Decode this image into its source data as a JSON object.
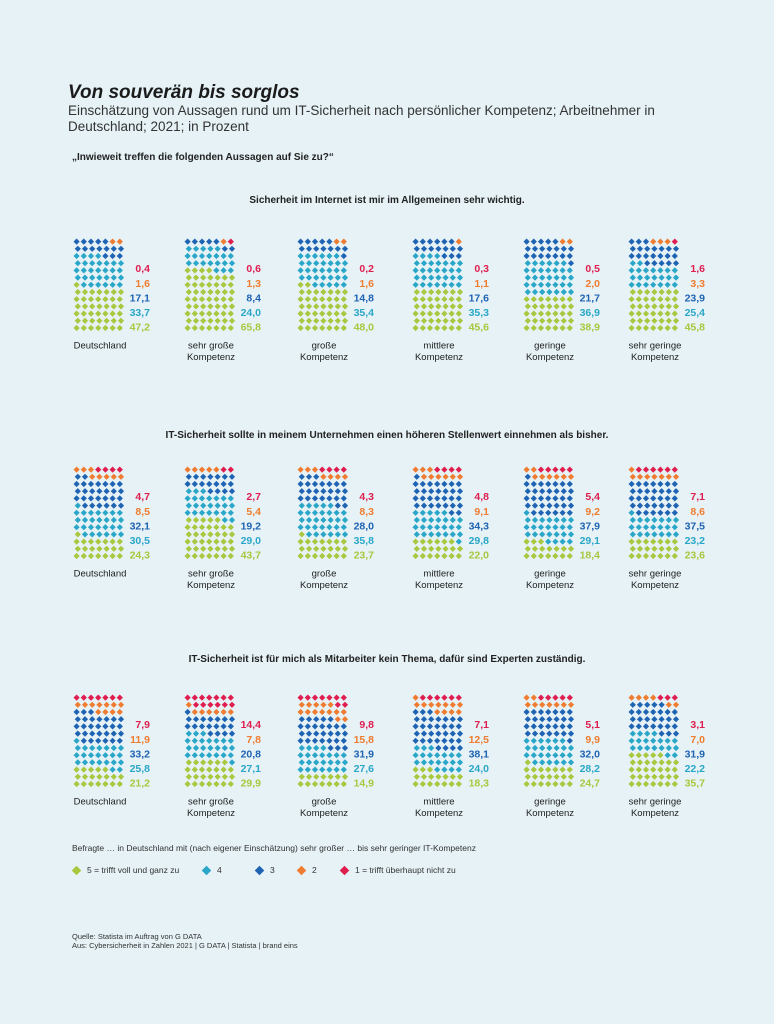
{
  "header": {
    "title": "Von souverän bis sorglos",
    "subtitle": "Einschätzung von Aussagen rund um IT-Sicherheit nach persönlicher Kompetenz; Arbeitnehmer in Deutschland; 2021; in Prozent",
    "question": "„Inwieweit treffen die folgenden Aussagen auf Sie zu?“"
  },
  "colors": {
    "5": "#a9c73f",
    "4": "#2aa7c8",
    "3": "#1f63b3",
    "2": "#ef7c30",
    "1": "#df1e4f"
  },
  "chart_data": [
    {
      "type": "waffle",
      "title": "Sicherheit im Internet ist mir im Allgemeinen sehr wichtig.",
      "categories": [
        "Deutschland",
        "sehr große Kompetenz",
        "große Kompetenz",
        "mittlere Kompetenz",
        "geringe Kompetenz",
        "sehr geringe Kompetenz"
      ],
      "series": [
        {
          "name": "1 = trifft überhaupt nicht zu",
          "values": [
            0.4,
            0.6,
            0.2,
            0.3,
            0.5,
            1.6
          ]
        },
        {
          "name": "2",
          "values": [
            1.6,
            1.3,
            1.6,
            1.1,
            2.0,
            3.3
          ]
        },
        {
          "name": "3",
          "values": [
            17.1,
            8.4,
            14.8,
            17.6,
            21.7,
            23.9
          ]
        },
        {
          "name": "4",
          "values": [
            33.7,
            24.0,
            35.4,
            35.3,
            36.9,
            25.4
          ]
        },
        {
          "name": "5 = trifft voll und ganz zu",
          "values": [
            47.2,
            65.8,
            48.0,
            45.6,
            38.9,
            45.8
          ]
        }
      ],
      "labels": [
        [
          "0,4",
          "1,6",
          "17,1",
          "33,7",
          "47,2"
        ],
        [
          "0,6",
          "1,3",
          "8,4",
          "24,0",
          "65,8"
        ],
        [
          "0,2",
          "1,6",
          "14,8",
          "35,4",
          "48,0"
        ],
        [
          "0,3",
          "1,1",
          "17,6",
          "35,3",
          "45,6"
        ],
        [
          "0,5",
          "2,0",
          "21,7",
          "36,9",
          "38,9"
        ],
        [
          "1,6",
          "3,3",
          "23,9",
          "25,4",
          "45,8"
        ]
      ]
    },
    {
      "type": "waffle",
      "title": "IT-Sicherheit sollte in meinem Unternehmen einen höheren Stellenwert einnehmen als bisher.",
      "categories": [
        "Deutschland",
        "sehr große Kompetenz",
        "große Kompetenz",
        "mittlere Kompetenz",
        "geringe Kompetenz",
        "sehr geringe Kompetenz"
      ],
      "series": [
        {
          "name": "1 = trifft überhaupt nicht zu",
          "values": [
            4.7,
            2.7,
            4.3,
            4.8,
            5.4,
            7.1
          ]
        },
        {
          "name": "2",
          "values": [
            8.5,
            5.4,
            8.3,
            9.1,
            9.2,
            8.6
          ]
        },
        {
          "name": "3",
          "values": [
            32.1,
            19.2,
            28.0,
            34.3,
            37.9,
            37.5
          ]
        },
        {
          "name": "4",
          "values": [
            30.5,
            29.0,
            35.8,
            29.8,
            29.1,
            23.2
          ]
        },
        {
          "name": "5 = trifft voll und ganz zu",
          "values": [
            24.3,
            43.7,
            23.7,
            22.0,
            18.4,
            23.6
          ]
        }
      ],
      "labels": [
        [
          "4,7",
          "8,5",
          "32,1",
          "30,5",
          "24,3"
        ],
        [
          "2,7",
          "5,4",
          "19,2",
          "29,0",
          "43,7"
        ],
        [
          "4,3",
          "8,3",
          "28,0",
          "35,8",
          "23,7"
        ],
        [
          "4,8",
          "9,1",
          "34,3",
          "29,8",
          "22,0"
        ],
        [
          "5,4",
          "9,2",
          "37,9",
          "29,1",
          "18,4"
        ],
        [
          "7,1",
          "8,6",
          "37,5",
          "23,2",
          "23,6"
        ]
      ]
    },
    {
      "type": "waffle",
      "title": "IT-Sicherheit ist für mich als Mitarbeiter kein Thema, dafür sind Experten zuständig.",
      "categories": [
        "Deutschland",
        "sehr große Kompetenz",
        "große Kompetenz",
        "mittlere Kompetenz",
        "geringe Kompetenz",
        "sehr geringe Kompetenz"
      ],
      "series": [
        {
          "name": "1 = trifft überhaupt nicht zu",
          "values": [
            7.9,
            14.4,
            9.8,
            7.1,
            5.1,
            3.1
          ]
        },
        {
          "name": "2",
          "values": [
            11.9,
            7.8,
            15.8,
            12.5,
            9.9,
            7.0
          ]
        },
        {
          "name": "3",
          "values": [
            33.2,
            20.8,
            31.9,
            38.1,
            32.0,
            31.9
          ]
        },
        {
          "name": "4",
          "values": [
            25.8,
            27.1,
            27.6,
            24.0,
            28.2,
            22.2
          ]
        },
        {
          "name": "5 = trifft voll und ganz zu",
          "values": [
            21.2,
            29.9,
            14.9,
            18.3,
            24.7,
            35.7
          ]
        }
      ],
      "labels": [
        [
          "7,9",
          "11,9",
          "33,2",
          "25,8",
          "21,2"
        ],
        [
          "14,4",
          "7,8",
          "20,8",
          "27,1",
          "29,9"
        ],
        [
          "9,8",
          "15,8",
          "31,9",
          "27,6",
          "14,9"
        ],
        [
          "7,1",
          "12,5",
          "38,1",
          "24,0",
          "18,3"
        ],
        [
          "5,1",
          "9,9",
          "32,0",
          "28,2",
          "24,7"
        ],
        [
          "3,1",
          "7,0",
          "31,9",
          "22,2",
          "35,7"
        ]
      ]
    }
  ],
  "groups": [
    {
      "line1": "Deutschland",
      "line2": ""
    },
    {
      "line1": "sehr große",
      "line2": "Kompetenz"
    },
    {
      "line1": "große",
      "line2": "Kompetenz"
    },
    {
      "line1": "mittlere",
      "line2": "Kompetenz"
    },
    {
      "line1": "geringe",
      "line2": "Kompetenz"
    },
    {
      "line1": "sehr geringe",
      "line2": "Kompetenz"
    }
  ],
  "footnote": "Befragte … in Deutschland mit (nach eigener Einschätzung) sehr großer … bis sehr geringer IT-Kompetenz",
  "legend": [
    {
      "key": "5",
      "label": "5 = trifft voll und ganz zu"
    },
    {
      "key": "4",
      "label": "4"
    },
    {
      "key": "3",
      "label": "3"
    },
    {
      "key": "2",
      "label": "2"
    },
    {
      "key": "1",
      "label": "1 = trifft überhaupt nicht zu"
    }
  ],
  "source": {
    "line1": "Quelle: Statista im Auftrag von G DATA",
    "line2": "Aus: Cybersicherheit in Zahlen 2021 | G DATA | Statista | brand eins"
  }
}
